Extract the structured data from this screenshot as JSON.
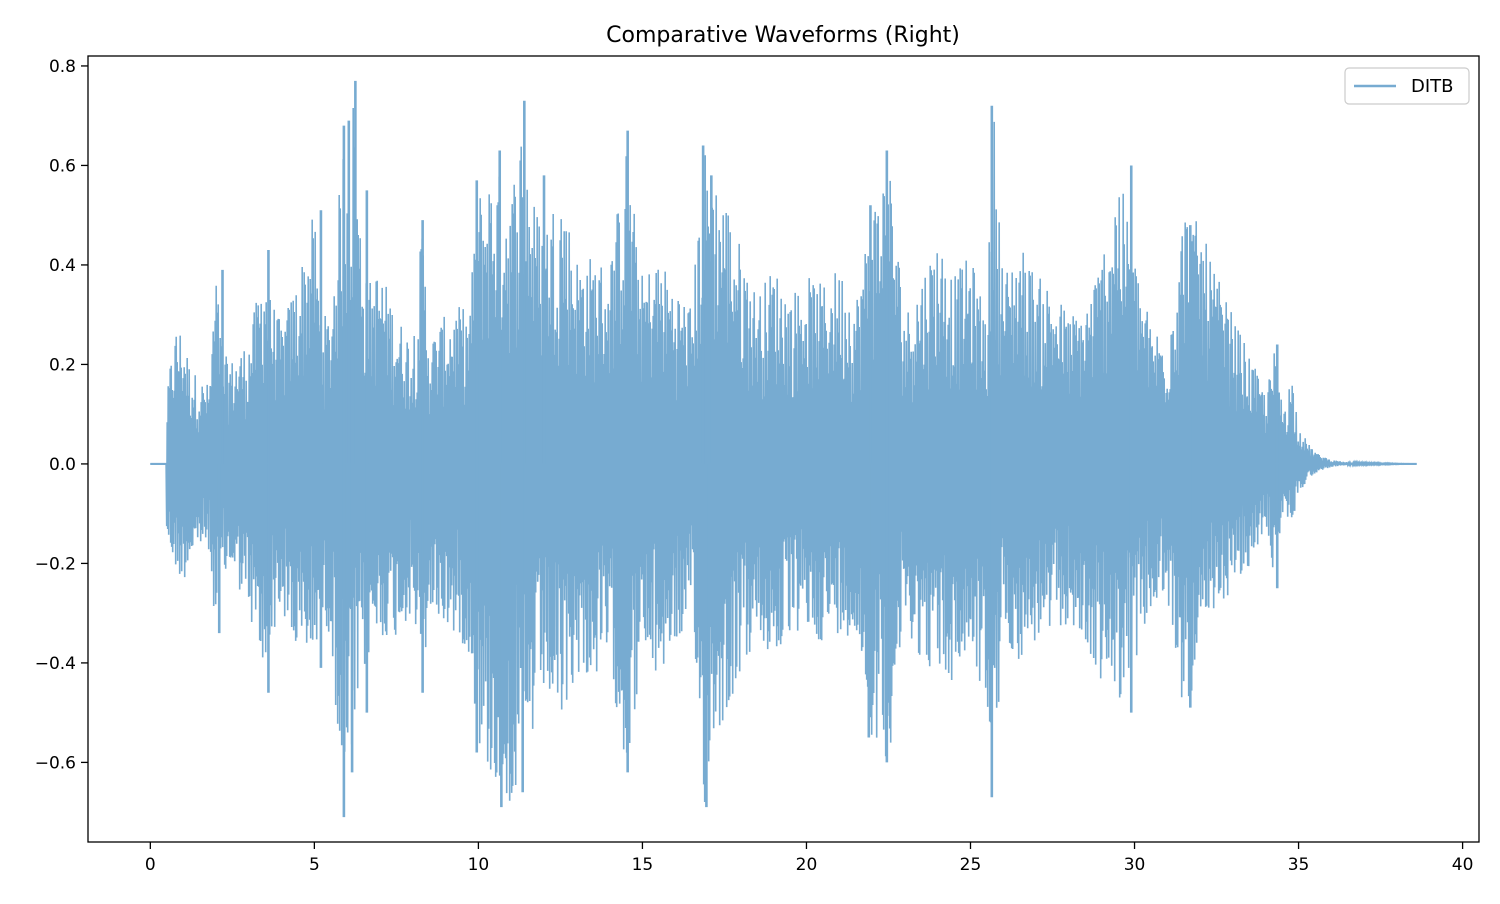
{
  "chart_data": {
    "type": "line",
    "title": "Comparative Waveforms (Right)",
    "xlabel": "",
    "ylabel": "",
    "xlim": [
      -1.9,
      40.5
    ],
    "ylim": [
      -0.76,
      0.82
    ],
    "x_ticks": [
      0,
      5,
      10,
      15,
      20,
      25,
      30,
      35,
      40
    ],
    "x_tick_labels": [
      "0",
      "5",
      "10",
      "15",
      "20",
      "25",
      "30",
      "35",
      "40"
    ],
    "y_ticks": [
      -0.6,
      -0.4,
      -0.2,
      0.0,
      0.2,
      0.4,
      0.6,
      0.8
    ],
    "y_tick_labels": [
      "−0.6",
      "−0.4",
      "−0.2",
      "0.0",
      "0.2",
      "0.4",
      "0.6",
      "0.8"
    ],
    "grid": false,
    "legend_position": "top-right",
    "series": [
      {
        "name": "DITB",
        "color": "#77abd1",
        "signal_start": 0.5,
        "signal_end": 38.6,
        "envelope_time": [
          0.0,
          0.45,
          0.5,
          0.6,
          0.8,
          1.0,
          1.2,
          1.5,
          1.8,
          2.0,
          2.2,
          2.5,
          3.0,
          3.5,
          3.6,
          4.0,
          4.5,
          5.0,
          5.2,
          5.5,
          5.9,
          6.1,
          6.2,
          6.3,
          6.6,
          7.0,
          7.5,
          8.0,
          8.3,
          8.5,
          9.0,
          9.5,
          9.7,
          10.0,
          10.5,
          11.0,
          11.4,
          11.6,
          12.0,
          12.5,
          13.0,
          13.5,
          14.0,
          14.5,
          15.0,
          15.5,
          16.0,
          16.5,
          16.9,
          17.2,
          17.5,
          18.0,
          18.5,
          19.0,
          19.5,
          20.0,
          20.5,
          21.0,
          21.5,
          22.0,
          22.5,
          23.0,
          23.5,
          24.0,
          24.5,
          25.0,
          25.5,
          25.7,
          26.0,
          26.5,
          27.0,
          27.5,
          28.0,
          28.5,
          29.0,
          29.5,
          30.0,
          30.5,
          31.0,
          31.5,
          32.0,
          32.5,
          33.0,
          33.5,
          34.0,
          34.3,
          34.5,
          34.8,
          35.0,
          35.3,
          35.6,
          36.0,
          36.5,
          38.6
        ],
        "envelope_upper": [
          0.0,
          0.0,
          0.12,
          0.2,
          0.28,
          0.27,
          0.2,
          0.17,
          0.16,
          0.39,
          0.22,
          0.21,
          0.25,
          0.42,
          0.35,
          0.28,
          0.38,
          0.51,
          0.3,
          0.3,
          0.68,
          0.6,
          0.77,
          0.58,
          0.36,
          0.4,
          0.3,
          0.25,
          0.49,
          0.25,
          0.3,
          0.32,
          0.3,
          0.55,
          0.6,
          0.55,
          0.73,
          0.55,
          0.48,
          0.57,
          0.42,
          0.42,
          0.4,
          0.64,
          0.38,
          0.42,
          0.36,
          0.32,
          0.64,
          0.58,
          0.55,
          0.44,
          0.34,
          0.4,
          0.34,
          0.38,
          0.36,
          0.4,
          0.33,
          0.52,
          0.63,
          0.3,
          0.38,
          0.46,
          0.38,
          0.42,
          0.3,
          0.73,
          0.38,
          0.45,
          0.38,
          0.36,
          0.3,
          0.32,
          0.42,
          0.6,
          0.42,
          0.28,
          0.26,
          0.52,
          0.48,
          0.38,
          0.3,
          0.22,
          0.14,
          0.24,
          0.12,
          0.18,
          0.08,
          0.04,
          0.02,
          0.008,
          0.003,
          0.0
        ],
        "envelope_lower": [
          0.0,
          0.0,
          -0.15,
          -0.18,
          -0.22,
          -0.24,
          -0.2,
          -0.17,
          -0.18,
          -0.34,
          -0.24,
          -0.22,
          -0.3,
          -0.46,
          -0.36,
          -0.3,
          -0.4,
          -0.39,
          -0.3,
          -0.35,
          -0.71,
          -0.6,
          -0.62,
          -0.5,
          -0.4,
          -0.35,
          -0.35,
          -0.3,
          -0.46,
          -0.3,
          -0.33,
          -0.36,
          -0.38,
          -0.58,
          -0.65,
          -0.69,
          -0.66,
          -0.58,
          -0.46,
          -0.54,
          -0.42,
          -0.44,
          -0.4,
          -0.62,
          -0.4,
          -0.44,
          -0.36,
          -0.34,
          -0.69,
          -0.55,
          -0.52,
          -0.42,
          -0.36,
          -0.4,
          -0.35,
          -0.34,
          -0.36,
          -0.34,
          -0.35,
          -0.55,
          -0.6,
          -0.32,
          -0.4,
          -0.42,
          -0.45,
          -0.37,
          -0.5,
          -0.67,
          -0.35,
          -0.4,
          -0.36,
          -0.35,
          -0.32,
          -0.38,
          -0.44,
          -0.48,
          -0.4,
          -0.3,
          -0.28,
          -0.5,
          -0.42,
          -0.3,
          -0.25,
          -0.22,
          -0.12,
          -0.25,
          -0.1,
          -0.12,
          -0.06,
          -0.03,
          -0.015,
          -0.006,
          -0.002,
          0.0
        ],
        "spikes": [
          {
            "x": 2.2,
            "y": 0.39
          },
          {
            "x": 2.1,
            "y": -0.34
          },
          {
            "x": 3.6,
            "y": 0.43
          },
          {
            "x": 3.6,
            "y": -0.46
          },
          {
            "x": 5.2,
            "y": 0.51
          },
          {
            "x": 5.2,
            "y": -0.41
          },
          {
            "x": 5.9,
            "y": 0.68
          },
          {
            "x": 5.9,
            "y": -0.71
          },
          {
            "x": 6.05,
            "y": 0.69
          },
          {
            "x": 6.25,
            "y": 0.77
          },
          {
            "x": 6.15,
            "y": -0.62
          },
          {
            "x": 6.6,
            "y": 0.55
          },
          {
            "x": 6.6,
            "y": -0.5
          },
          {
            "x": 8.3,
            "y": 0.49
          },
          {
            "x": 8.3,
            "y": -0.46
          },
          {
            "x": 9.95,
            "y": 0.57
          },
          {
            "x": 9.95,
            "y": -0.58
          },
          {
            "x": 10.65,
            "y": 0.63
          },
          {
            "x": 10.7,
            "y": -0.69
          },
          {
            "x": 11.4,
            "y": 0.73
          },
          {
            "x": 11.35,
            "y": -0.66
          },
          {
            "x": 12.0,
            "y": 0.58
          },
          {
            "x": 14.55,
            "y": 0.67
          },
          {
            "x": 14.55,
            "y": -0.62
          },
          {
            "x": 16.85,
            "y": 0.64
          },
          {
            "x": 16.95,
            "y": -0.69
          },
          {
            "x": 17.1,
            "y": 0.58
          },
          {
            "x": 22.45,
            "y": 0.63
          },
          {
            "x": 22.45,
            "y": -0.6
          },
          {
            "x": 21.95,
            "y": 0.52
          },
          {
            "x": 21.9,
            "y": -0.55
          },
          {
            "x": 25.65,
            "y": 0.72
          },
          {
            "x": 25.65,
            "y": -0.67
          },
          {
            "x": 29.9,
            "y": 0.6
          },
          {
            "x": 29.9,
            "y": -0.5
          },
          {
            "x": 31.7,
            "y": 0.48
          },
          {
            "x": 31.7,
            "y": -0.49
          },
          {
            "x": 34.35,
            "y": 0.24
          },
          {
            "x": 34.35,
            "y": -0.25
          }
        ]
      }
    ]
  }
}
